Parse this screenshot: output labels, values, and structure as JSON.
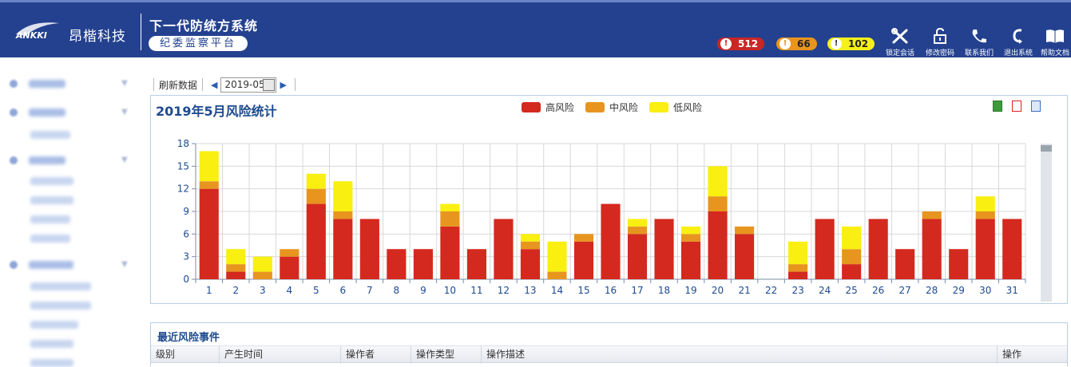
{
  "header": {
    "brand_logo_text": "ANKKI",
    "brand": "昂楷科技",
    "system_title": "下一代防统方系统",
    "system_subtitle": "纪委监察平台",
    "alerts": [
      {
        "level": "high",
        "count": "512",
        "color": "#c92626"
      },
      {
        "level": "medium",
        "count": "66",
        "color": "#e8951f"
      },
      {
        "level": "low",
        "count": "102",
        "color": "#f6f01a"
      }
    ],
    "tools": [
      {
        "label": "锁定会话",
        "icon": "tools-icon"
      },
      {
        "label": "修改密码",
        "icon": "lock-icon"
      },
      {
        "label": "联系我们",
        "icon": "phone-icon"
      },
      {
        "label": "退出系统",
        "icon": "logout-icon"
      },
      {
        "label": "帮助文档",
        "icon": "book-icon"
      }
    ]
  },
  "toolbar": {
    "refresh_label": "刷新数据",
    "date_value": "2019-05"
  },
  "chart_data": {
    "type": "bar",
    "stacked": true,
    "title": "2019年5月风险统计",
    "categories": [
      "1",
      "2",
      "3",
      "4",
      "5",
      "6",
      "7",
      "8",
      "9",
      "10",
      "11",
      "12",
      "13",
      "14",
      "15",
      "16",
      "17",
      "18",
      "19",
      "20",
      "21",
      "22",
      "23",
      "24",
      "25",
      "26",
      "27",
      "28",
      "29",
      "30",
      "31"
    ],
    "series": [
      {
        "name": "高风险",
        "color": "#d4291f",
        "values": [
          12,
          1,
          0,
          3,
          10,
          8,
          8,
          4,
          4,
          7,
          4,
          8,
          4,
          0,
          5,
          10,
          6,
          8,
          5,
          9,
          6,
          0,
          1,
          8,
          2,
          8,
          4,
          8,
          4,
          8,
          8
        ]
      },
      {
        "name": "中风险",
        "color": "#e8951f",
        "values": [
          1,
          1,
          1,
          1,
          2,
          1,
          0,
          0,
          0,
          2,
          0,
          0,
          1,
          1,
          1,
          0,
          1,
          0,
          1,
          2,
          1,
          0,
          1,
          0,
          2,
          0,
          0,
          1,
          0,
          1,
          0
        ]
      },
      {
        "name": "低风险",
        "color": "#f9ef10",
        "values": [
          4,
          2,
          2,
          0,
          2,
          4,
          0,
          0,
          0,
          1,
          0,
          0,
          1,
          4,
          0,
          0,
          1,
          0,
          1,
          4,
          0,
          0,
          3,
          0,
          3,
          0,
          0,
          0,
          0,
          2,
          0
        ]
      }
    ],
    "y_ticks": [
      "0",
      "3",
      "6",
      "9",
      "12",
      "15",
      "18"
    ],
    "ylim": [
      0,
      18
    ],
    "grid": true,
    "legend_position": "top-center"
  },
  "events": {
    "title": "最近风险事件",
    "columns": [
      "级别",
      "产生时间",
      "操作者",
      "操作类型",
      "操作描述",
      "操作"
    ]
  }
}
